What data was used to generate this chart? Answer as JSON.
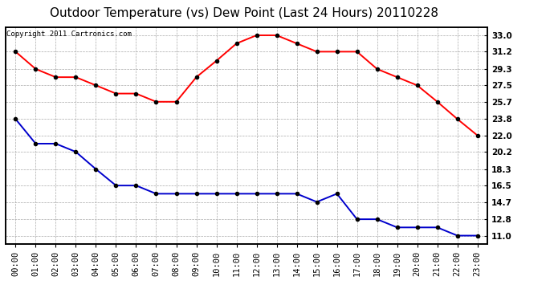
{
  "title": "Outdoor Temperature (vs) Dew Point (Last 24 Hours) 20110228",
  "copyright": "Copyright 2011 Cartronics.com",
  "x_labels": [
    "00:00",
    "01:00",
    "02:00",
    "03:00",
    "04:00",
    "05:00",
    "06:00",
    "07:00",
    "08:00",
    "09:00",
    "10:00",
    "11:00",
    "12:00",
    "13:00",
    "14:00",
    "15:00",
    "16:00",
    "17:00",
    "18:00",
    "19:00",
    "20:00",
    "21:00",
    "22:00",
    "23:00"
  ],
  "temp_data": [
    31.2,
    29.3,
    28.4,
    28.4,
    27.5,
    26.6,
    26.6,
    25.7,
    25.7,
    28.4,
    30.2,
    32.1,
    33.0,
    33.0,
    32.1,
    31.2,
    31.2,
    31.2,
    29.3,
    28.4,
    27.5,
    25.7,
    23.8,
    22.0
  ],
  "dew_data": [
    23.8,
    21.1,
    21.1,
    20.2,
    18.3,
    16.5,
    16.5,
    15.6,
    15.6,
    15.6,
    15.6,
    15.6,
    15.6,
    15.6,
    15.6,
    14.7,
    15.6,
    12.8,
    12.8,
    11.9,
    11.9,
    11.9,
    11.0,
    11.0
  ],
  "temp_color": "#ff0000",
  "dew_color": "#0000cc",
  "bg_color": "#ffffff",
  "grid_color": "#aaaaaa",
  "y_ticks": [
    11.0,
    12.8,
    14.7,
    16.5,
    18.3,
    20.2,
    22.0,
    23.8,
    25.7,
    27.5,
    29.3,
    31.2,
    33.0
  ],
  "y_min": 10.1,
  "y_max": 33.9,
  "title_fontsize": 11,
  "copyright_fontsize": 6.5,
  "axis_fontsize": 7.5,
  "marker_size": 3,
  "line_width": 1.4
}
